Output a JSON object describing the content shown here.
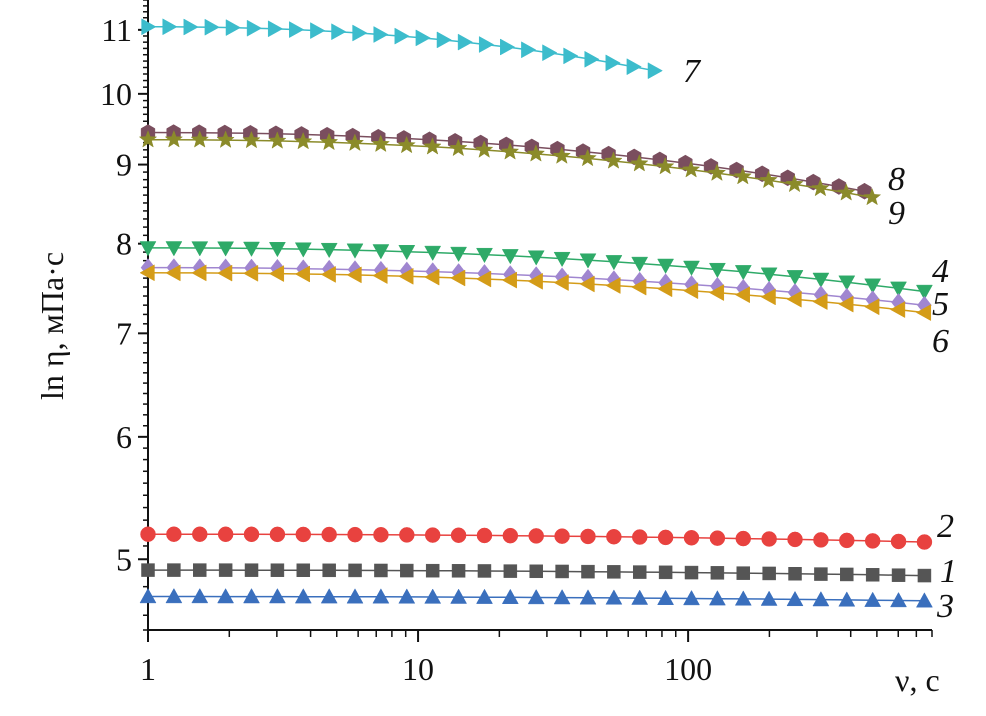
{
  "chart_data": {
    "type": "scatter",
    "title": "",
    "xlabel": "ν, с",
    "ylabel": "ln η, мПа·с",
    "xscale": "log",
    "yscale": "log",
    "xlim": [
      1,
      800
    ],
    "ylim": [
      4.5,
      11.5
    ],
    "x_ticks": [
      1,
      10,
      100
    ],
    "x_tick_labels": [
      "1",
      "10",
      "100"
    ],
    "y_ticks": [
      5,
      6,
      7,
      8,
      9,
      10,
      11
    ],
    "y_tick_labels": [
      "5",
      "6",
      "7",
      "8",
      "9",
      "10",
      "11"
    ],
    "grid": false,
    "series": [
      {
        "name": "1",
        "color": "#555555",
        "marker": "square",
        "x_start": 1,
        "x_end": 750,
        "y_start": 4.92,
        "y_end": 4.88,
        "n": 31
      },
      {
        "name": "2",
        "color": "#e8423f",
        "marker": "circle",
        "x_start": 1,
        "x_end": 750,
        "y_start": 5.19,
        "y_end": 5.13,
        "n": 31
      },
      {
        "name": "3",
        "color": "#3a6fbd",
        "marker": "triangle-up",
        "x_start": 1,
        "x_end": 750,
        "y_start": 4.73,
        "y_end": 4.7,
        "n": 31
      },
      {
        "name": "4",
        "color": "#2eaa68",
        "marker": "triangle-down",
        "x_start": 1,
        "x_end": 750,
        "y_start": 7.95,
        "y_end": 7.45,
        "n": 31
      },
      {
        "name": "5",
        "color": "#a086d0",
        "marker": "diamond",
        "x_start": 1,
        "x_end": 750,
        "y_start": 7.72,
        "y_end": 7.3,
        "n": 31
      },
      {
        "name": "6",
        "color": "#d49c18",
        "marker": "triangle-left",
        "x_start": 1,
        "x_end": 750,
        "y_start": 7.66,
        "y_end": 7.22,
        "n": 31
      },
      {
        "name": "7",
        "color": "#3cbccc",
        "marker": "triangle-right",
        "x_start": 1,
        "x_end": 75,
        "y_start": 11.05,
        "y_end": 10.35,
        "n": 25
      },
      {
        "name": "8",
        "color": "#7a4e5e",
        "marker": "hexagon",
        "x_start": 1,
        "x_end": 450,
        "y_start": 9.44,
        "y_end": 8.65,
        "n": 29
      },
      {
        "name": "9",
        "color": "#8b8b2a",
        "marker": "star",
        "x_start": 1,
        "x_end": 480,
        "y_start": 9.34,
        "y_end": 8.57,
        "n": 29
      }
    ]
  }
}
